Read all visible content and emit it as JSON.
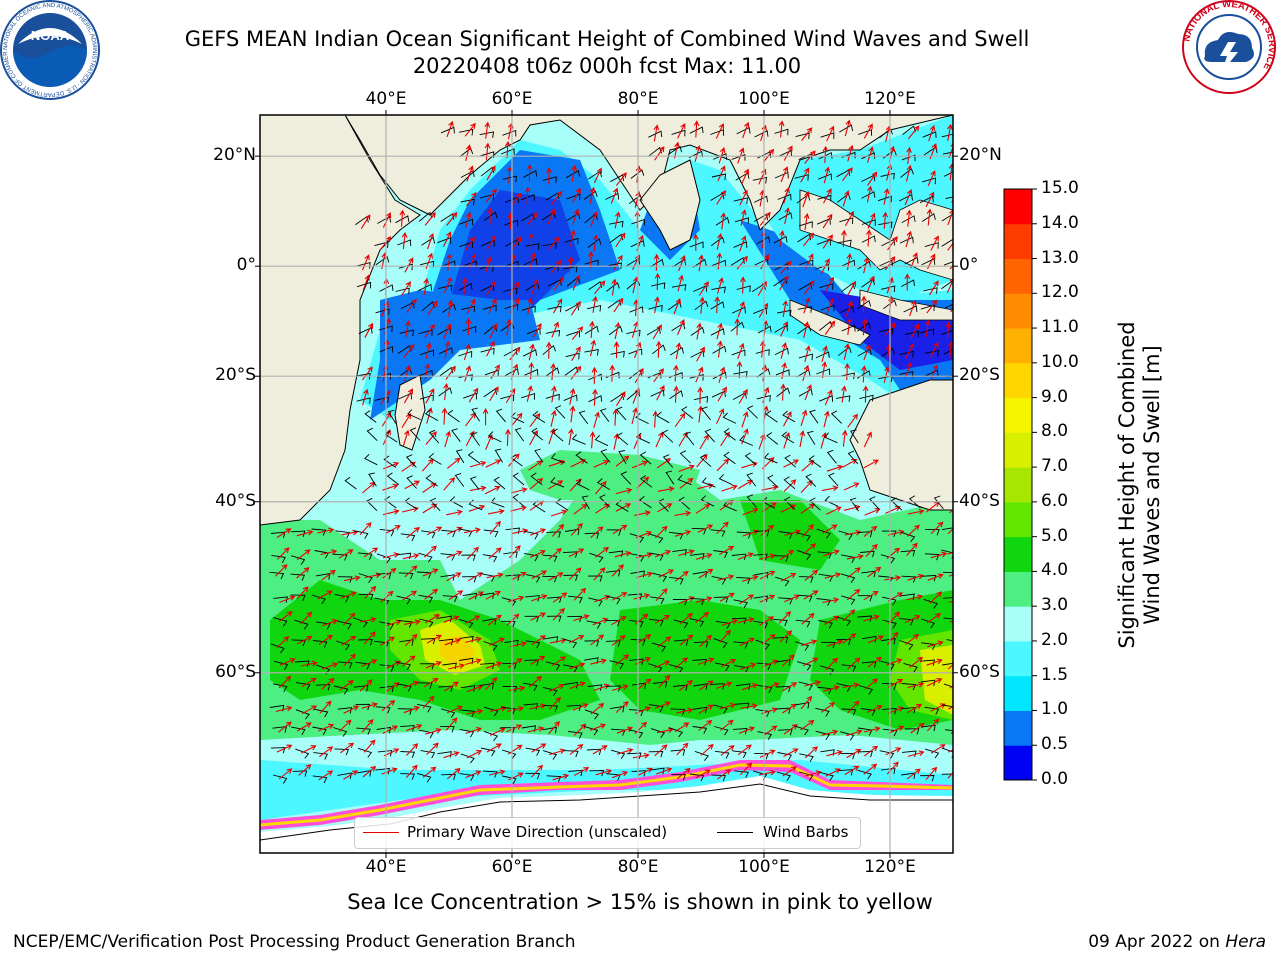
{
  "title": {
    "line1": "GEFS MEAN Indian Ocean Significant Height of Combined Wind Waves and Swell",
    "line2": "20220408 t06z 000h fcst   Max: 11.00"
  },
  "logos": {
    "left": {
      "name": "noaa-logo",
      "text": "NOAA",
      "ring_text": "NATIONAL OCEANIC AND ATMOSPHERIC ADMINISTRATION · U.S. DEPARTMENT OF COMMERCE",
      "color": "#1a4f9c"
    },
    "right": {
      "name": "nws-logo",
      "ring_text": "NATIONAL WEATHER SERVICE",
      "color": "#d0021b"
    }
  },
  "map": {
    "lon_range": [
      20,
      130
    ],
    "lat_range": [
      -73,
      27
    ],
    "top_ticks": [
      "40°E",
      "60°E",
      "80°E",
      "100°E",
      "120°E"
    ],
    "bottom_ticks": [
      "40°E",
      "60°E",
      "80°E",
      "100°E",
      "120°E"
    ],
    "lat_ticks": [
      "20°N",
      "0°",
      "20°S",
      "40°S",
      "60°S"
    ],
    "land_color": "#efeedd",
    "grid": true
  },
  "legend": {
    "wave_label": "Primary Wave Direction (unscaled)",
    "wave_color": "#e60000",
    "wind_label": "Wind Barbs",
    "wind_color": "#000000"
  },
  "colorbar": {
    "title_line1": "Significant Height of Combined",
    "title_line2": "Wind Waves and Swell [m]",
    "ticks": [
      "0.0",
      "0.5",
      "1.0",
      "1.5",
      "2.0",
      "3.0",
      "4.0",
      "5.0",
      "6.0",
      "7.0",
      "8.0",
      "9.0",
      "10.0",
      "11.0",
      "12.0",
      "13.0",
      "14.0",
      "15.0"
    ],
    "colors": [
      "#0000f5",
      "#0a78f5",
      "#00e6ff",
      "#4df7ff",
      "#a8fff9",
      "#4dee82",
      "#0fd60f",
      "#62e600",
      "#a6e600",
      "#d9ef00",
      "#f5f500",
      "#ffd700",
      "#ffb000",
      "#ff8c00",
      "#ff6400",
      "#ff3c00",
      "#ff0000"
    ]
  },
  "footer": {
    "note": "Sea Ice Concentration > 15% is shown in pink to yellow",
    "left": "NCEP/EMC/Verification Post Processing Product Generation Branch",
    "right_date": "09 Apr 2022 on ",
    "right_host": "Hera"
  }
}
